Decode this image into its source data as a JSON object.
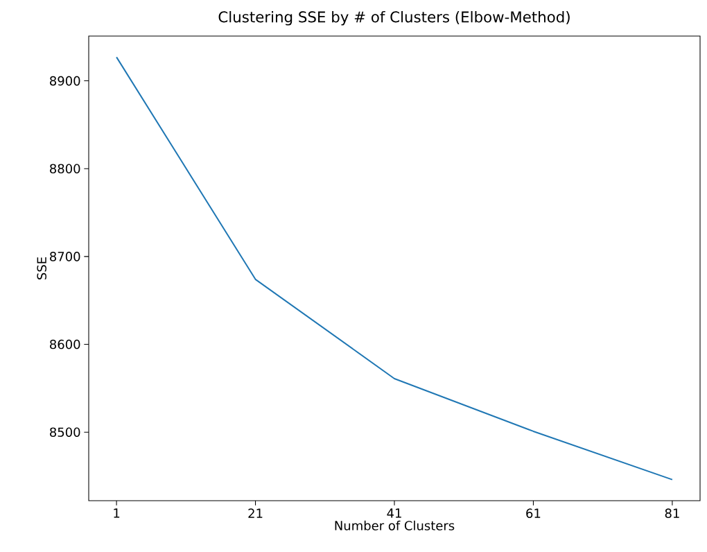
{
  "chart_data": {
    "type": "line",
    "title": "Clustering SSE by # of Clusters (Elbow-Method)",
    "xlabel": "Number of Clusters",
    "ylabel": "SSE",
    "x": [
      1,
      21,
      41,
      61,
      81
    ],
    "series": [
      {
        "color": "#1f77b4",
        "values": [
          8927,
          8674,
          8561,
          8501,
          8446
        ]
      }
    ],
    "xlim": [
      -3,
      85
    ],
    "ylim": [
      8422,
      8951
    ],
    "xticks": [
      1,
      21,
      41,
      61,
      81
    ],
    "yticks": [
      8500,
      8600,
      8700,
      8800,
      8900
    ],
    "grid": false,
    "marker": "none",
    "line_style": "solid"
  }
}
